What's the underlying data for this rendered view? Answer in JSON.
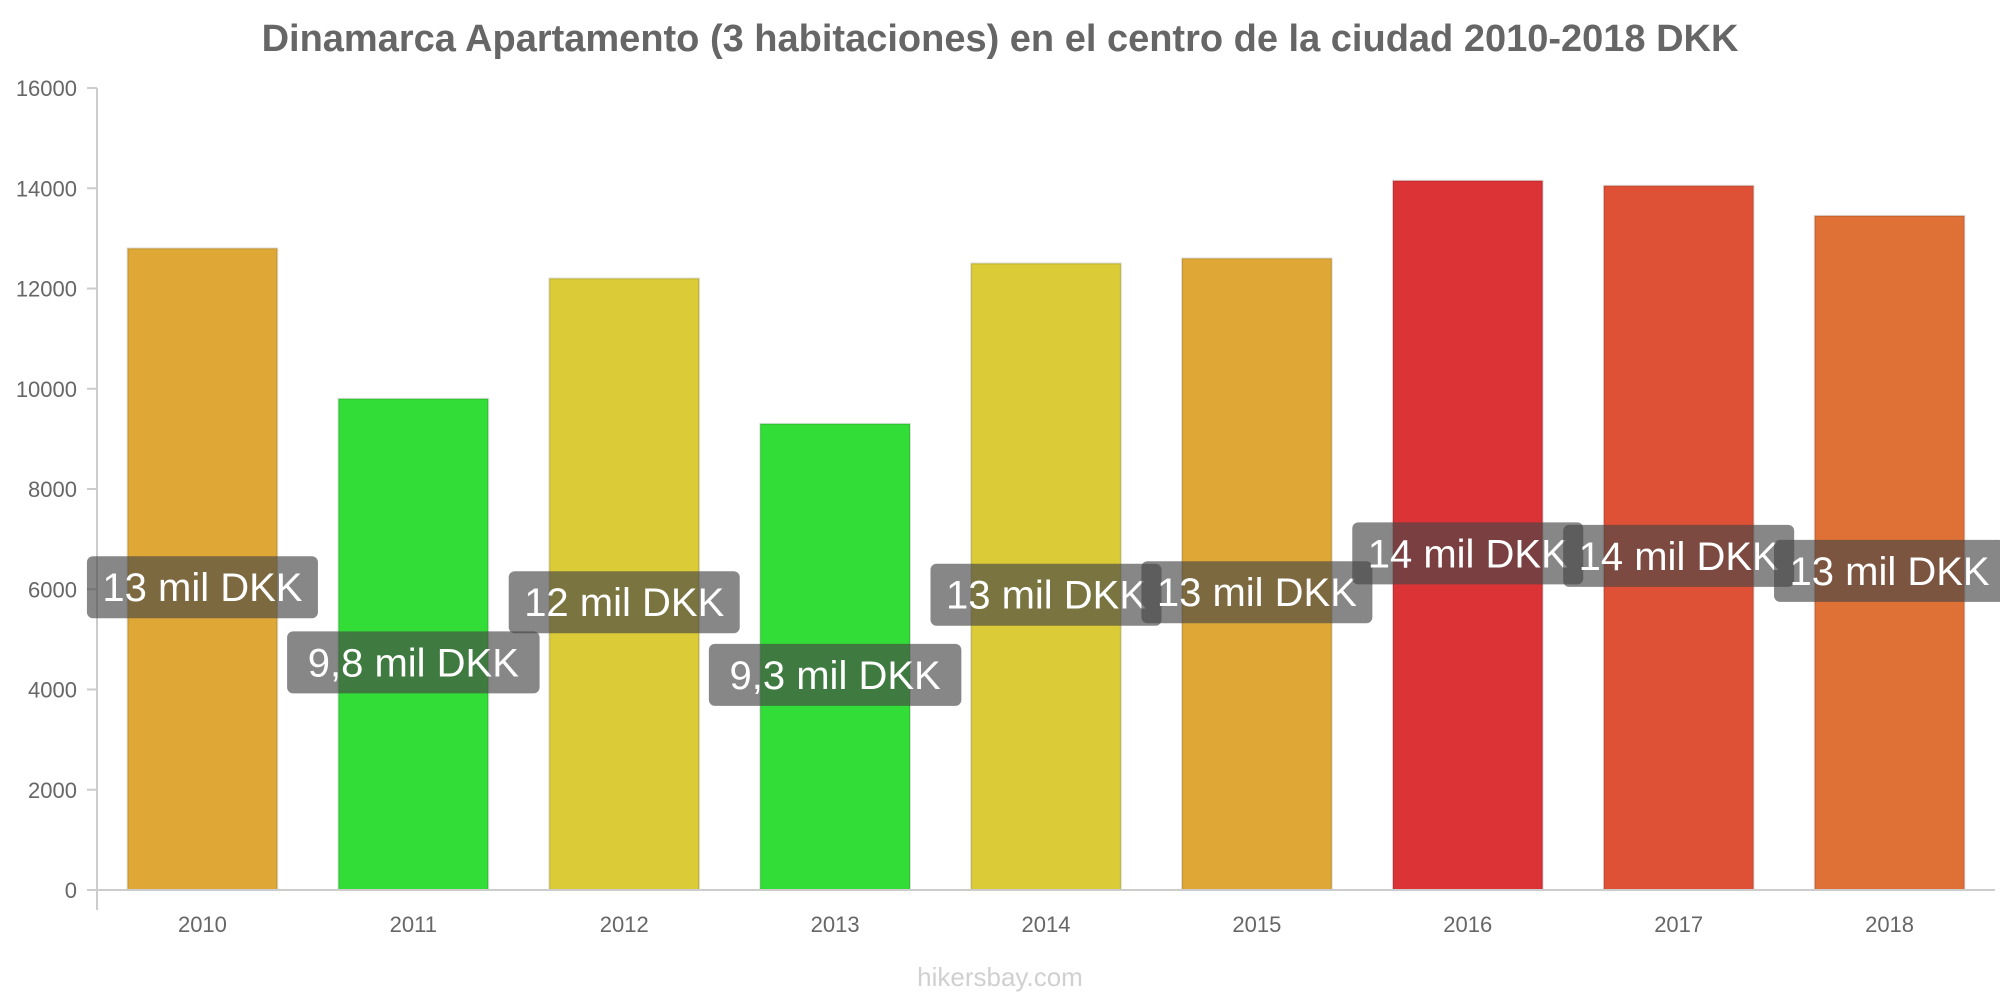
{
  "chart_data": {
    "type": "bar",
    "title": "Dinamarca Apartamento (3 habitaciones) en el centro de la ciudad 2010-2018 DKK",
    "xlabel": "",
    "ylabel": "",
    "ylim": [
      0,
      16000
    ],
    "yticks": [
      "0",
      "2000",
      "4000",
      "6000",
      "8000",
      "10000",
      "12000",
      "14000",
      "16000"
    ],
    "categories": [
      "2010",
      "2011",
      "2012",
      "2013",
      "2014",
      "2015",
      "2016",
      "2017",
      "2018"
    ],
    "values": [
      12800,
      9800,
      12200,
      9300,
      12500,
      12600,
      14150,
      14050,
      13450
    ],
    "data_labels": [
      "13 mil DKK",
      "9,8 mil DKK",
      "12 mil DKK",
      "9,3 mil DKK",
      "13 mil DKK",
      "13 mil DKK",
      "14 mil DKK",
      "14 mil DKK",
      "13 mil DKK"
    ],
    "colors": [
      "#dfa836",
      "#33dd38",
      "#dbcb36",
      "#33dd38",
      "#dbcb36",
      "#dfa836",
      "#db3336",
      "#df5136",
      "#df7136"
    ],
    "grid": false,
    "legend": "none"
  },
  "watermark": "hikersbay.com"
}
